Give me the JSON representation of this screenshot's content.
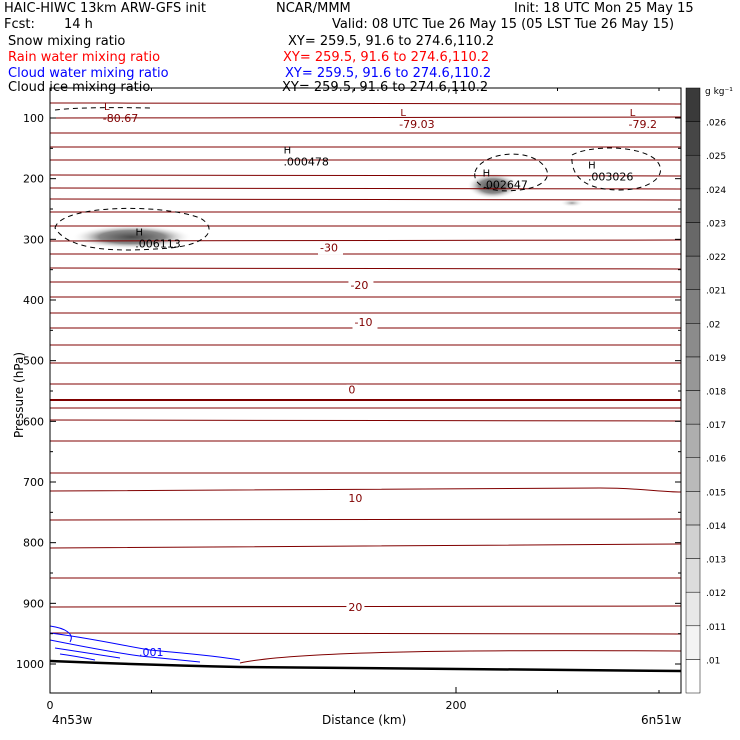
{
  "header": {
    "model": "HAIC-HIWC 13km ARW-GFS init",
    "org": "NCAR/MMM",
    "init": "Init: 18 UTC Mon 25 May 15",
    "fcst_label": "Fcst:",
    "fcst_value": "14 h",
    "valid": "Valid: 08 UTC Tue 26 May 15 (05 LST Tue 26 May 15)"
  },
  "fields": [
    {
      "name": "Snow mixing ratio",
      "xy": "XY= 259.5, 91.6 to 274.6,110.2",
      "color": "#000000"
    },
    {
      "name": "Rain water mixing ratio",
      "xy": "XY= 259.5, 91.6 to 274.6,110.2",
      "color": "#ff0000"
    },
    {
      "name": "Cloud water mixing ratio",
      "xy": "XY= 259.5, 91.6 to 274.6,110.2",
      "color": "#0000ff"
    },
    {
      "name": "Cloud ice mixing ratio",
      "xy": "XY= 259.5, 91.6 to 274.6,110.2",
      "color": "#000000"
    }
  ],
  "chart_data": {
    "type": "contour",
    "xlabel": "Distance (km)",
    "ylabel": "Pressure (hPa)",
    "xlim": [
      0,
      300
    ],
    "ylim": [
      1050,
      50
    ],
    "x_ticks": [
      "0",
      "200"
    ],
    "x_tick_values": [
      0,
      200
    ],
    "y_ticks": [
      "100",
      "200",
      "300",
      "400",
      "500",
      "600",
      "700",
      "800",
      "900",
      "1000"
    ],
    "y_tick_values": [
      100,
      200,
      300,
      400,
      500,
      600,
      700,
      800,
      900,
      1000
    ],
    "left_endpoint": "4n53w",
    "right_endpoint": "6n51w",
    "isotherm_labels": [
      {
        "text": "-30",
        "x": 133,
        "p": 320
      },
      {
        "text": "-20",
        "x": 148,
        "p": 382
      },
      {
        "text": "-10",
        "x": 150,
        "p": 443
      },
      {
        "text": "0",
        "x": 147,
        "p": 554
      },
      {
        "text": "10",
        "x": 147,
        "p": 733
      },
      {
        "text": "20",
        "x": 147,
        "p": 913
      }
    ],
    "extrema": [
      {
        "type": "L",
        "value": "-80.67",
        "x": 26,
        "p": 93
      },
      {
        "type": "L",
        "value": "-79.03",
        "x": 172,
        "p": 103
      },
      {
        "type": "L",
        "value": "-79.2",
        "x": 285,
        "p": 103
      },
      {
        "type": "H",
        "value": ".000478",
        "x": 115,
        "p": 165
      },
      {
        "type": "H",
        "value": ".002647",
        "x": 213,
        "p": 203
      },
      {
        "type": "H",
        "value": ".003026",
        "x": 265,
        "p": 190
      },
      {
        "type": "H",
        "value": ".006113",
        "x": 42,
        "p": 300
      }
    ],
    "cloud_water_label": ".001",
    "colorbar": {
      "unit": "g kg⁻¹",
      "labels": [
        ".01",
        ".011",
        ".012",
        ".013",
        ".014",
        ".015",
        ".016",
        ".017",
        ".018",
        ".019",
        ".02",
        ".021",
        ".022",
        ".023",
        ".024",
        ".025",
        ".026"
      ]
    }
  }
}
